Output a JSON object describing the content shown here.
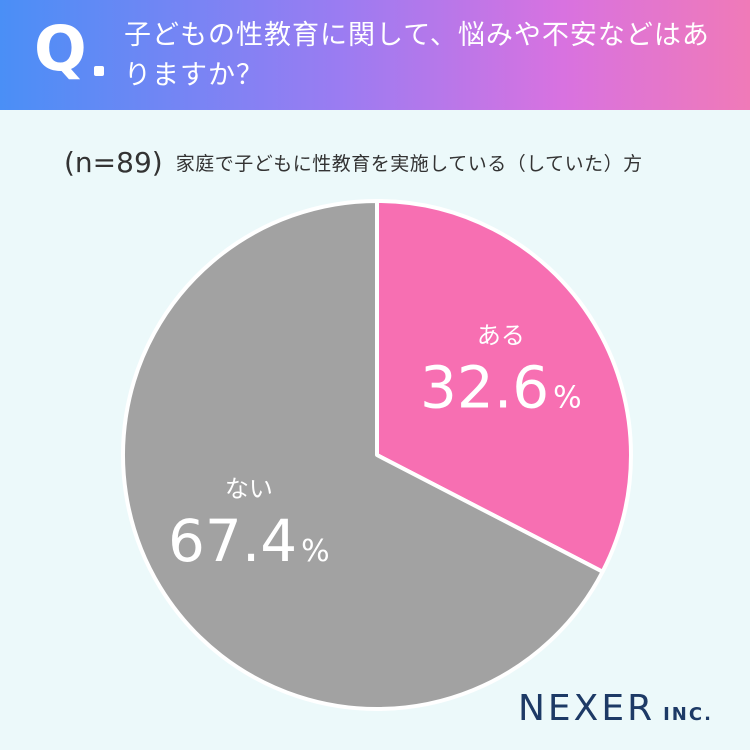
{
  "header": {
    "q_mark": "Q",
    "question": "子どもの性教育に関して、悩みや不安などはありますか？"
  },
  "subtitle": {
    "sample": "(n=89)",
    "target": "家庭で子どもに性教育を実施している（していた）方"
  },
  "logo": {
    "main": "NEXER",
    "suffix": "INC."
  },
  "colors": {
    "aru": "#f76fb2",
    "nai": "#a2a2a2",
    "background": "#ecf9fa"
  },
  "chart_data": {
    "type": "pie",
    "unit": "%",
    "slices": [
      {
        "label": "ある",
        "value": 32.6,
        "color": "#f76fb2"
      },
      {
        "label": "ない",
        "value": 67.4,
        "color": "#a2a2a2"
      }
    ]
  }
}
